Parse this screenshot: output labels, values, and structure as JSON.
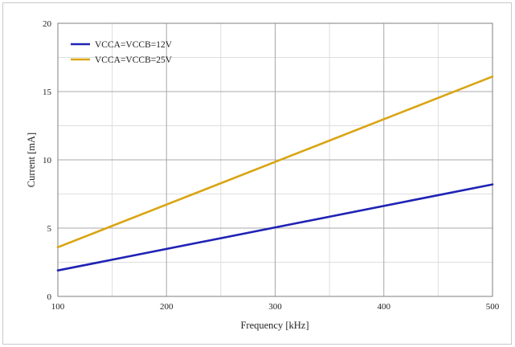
{
  "chart_data": {
    "type": "line",
    "title": "",
    "xlabel": "Frequency [kHz]",
    "ylabel": "Current [mA]",
    "xlim": [
      100,
      500
    ],
    "ylim": [
      0,
      20
    ],
    "x_ticks": [
      100,
      200,
      300,
      400,
      500
    ],
    "y_ticks": [
      0,
      5,
      10,
      15,
      20
    ],
    "grid": true,
    "legend_position": "top-left",
    "series": [
      {
        "name": "VCCA=VCCB=12V",
        "color": "#1f23b4",
        "x": [
          100,
          500
        ],
        "y": [
          1.9,
          8.2
        ]
      },
      {
        "name": "VCCA=VCCB=25V",
        "color": "#d9a514",
        "x": [
          100,
          500
        ],
        "y": [
          3.6,
          16.1
        ]
      }
    ]
  }
}
